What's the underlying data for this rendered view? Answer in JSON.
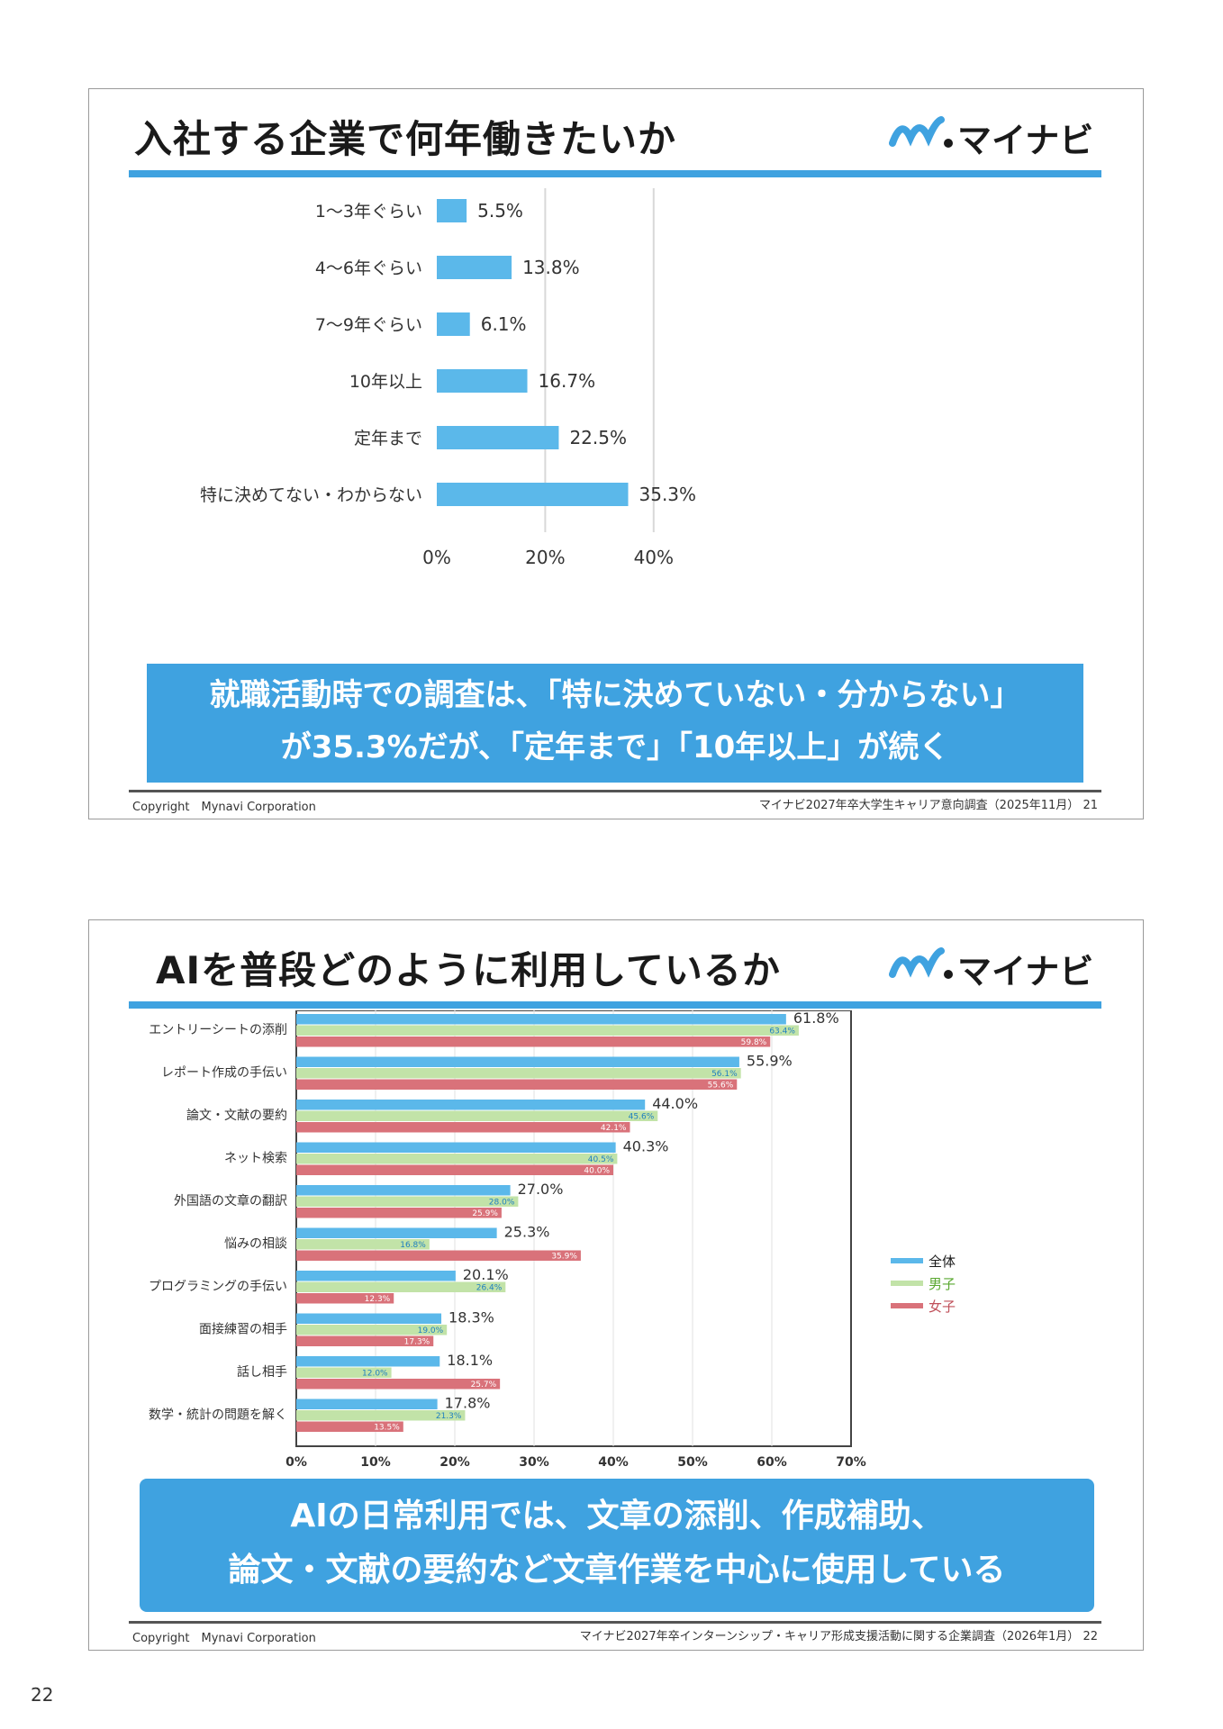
{
  "slides": [
    {
      "title": "入社する企業で何年働きたいか",
      "logo_text": "マイナビ",
      "callout_line1": "就職活動時での調査は、「特に決めていない・分からない」",
      "callout_line2": "が35.3%だが、「定年まで」「10年以上」が続く",
      "copyright": "Copyright　Mynavi Corporation",
      "source": "マイナビ2027年卒大学生キャリア意向調査（2025年11月）",
      "slide_number": "21"
    },
    {
      "title": "AIを普段どのように利用しているか",
      "logo_text": "マイナビ",
      "callout_line1": "AIの日常利用では、文章の添削、作成補助、",
      "callout_line2": "論文・文献の要約など文章作業を中心に使用している",
      "copyright": "Copyright　Mynavi Corporation",
      "source": "マイナビ2027年卒インターンシップ・キャリア形成支援活動に関する企業調査（2026年1月）",
      "slide_number": "22"
    }
  ],
  "page_number": "22",
  "colors": {
    "accent": "#3fa2e0",
    "bar_blue": "#5bb8ea",
    "bar_green": "#c2e3a8",
    "bar_red": "#d9727a"
  },
  "chart_data": [
    {
      "type": "bar",
      "orientation": "horizontal",
      "categories": [
        "1～3年ぐらい",
        "4～6年ぐらい",
        "7～9年ぐらい",
        "10年以上",
        "定年まで",
        "特に決めてない・わからない"
      ],
      "values": [
        5.5,
        13.8,
        6.1,
        16.7,
        22.5,
        35.3
      ],
      "value_labels": [
        "5.5%",
        "13.8%",
        "6.1%",
        "16.7%",
        "22.5%",
        "35.3%"
      ],
      "xlim": [
        0,
        40
      ],
      "x_ticks": [
        "0%",
        "20%",
        "40%"
      ],
      "grid": true
    },
    {
      "type": "bar",
      "orientation": "horizontal",
      "categories": [
        "エントリーシートの添削",
        "レポート作成の手伝い",
        "論文・文献の要約",
        "ネット検索",
        "外国語の文章の翻訳",
        "悩みの相談",
        "プログラミングの手伝い",
        "面接練習の相手",
        "話し相手",
        "数学・統計の問題を解く"
      ],
      "series": [
        {
          "name": "全体",
          "values": [
            61.8,
            55.9,
            44.0,
            40.3,
            27.0,
            25.3,
            20.1,
            18.3,
            18.1,
            17.8
          ],
          "labels": [
            "61.8%",
            "55.9%",
            "44.0%",
            "40.3%",
            "27.0%",
            "25.3%",
            "20.1%",
            "18.3%",
            "18.1%",
            "17.8%"
          ]
        },
        {
          "name": "男子",
          "values": [
            63.4,
            56.1,
            45.6,
            40.5,
            28.0,
            16.8,
            26.4,
            19.0,
            12.0,
            21.3
          ],
          "labels": [
            "63.4%",
            "56.1%",
            "45.6%",
            "40.5%",
            "28.0%",
            "16.8%",
            "26.4%",
            "19.0%",
            "12.0%",
            "21.3%"
          ]
        },
        {
          "name": "女子",
          "values": [
            59.8,
            55.6,
            42.1,
            40.0,
            25.9,
            35.9,
            12.3,
            17.3,
            25.7,
            13.5
          ],
          "labels": [
            "59.8%",
            "55.6%",
            "42.1%",
            "40.0%",
            "25.9%",
            "35.9%",
            "12.3%",
            "17.3%",
            "25.7%",
            "13.5%"
          ]
        }
      ],
      "xlim": [
        0,
        70
      ],
      "x_ticks": [
        "0%",
        "10%",
        "20%",
        "30%",
        "40%",
        "50%",
        "60%",
        "70%"
      ],
      "legend": "right",
      "grid": true
    }
  ]
}
